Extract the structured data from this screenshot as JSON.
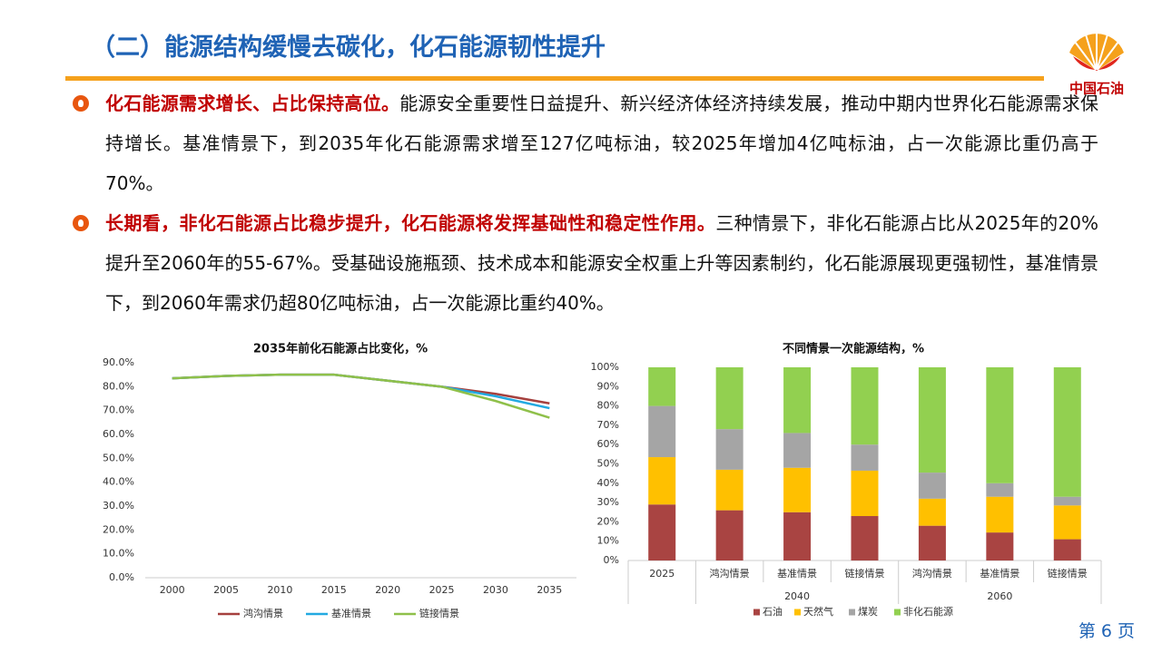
{
  "header": {
    "title": "（二）能源结构缓慢去碳化，化石能源韧性提升",
    "logo_text": "中国石油"
  },
  "bullets": [
    {
      "highlight": "化石能源需求增长、占比保持高位。",
      "text": "能源安全重要性日益提升、新兴经济体经济持续发展，推动中期内世界化石能源需求保持增长。基准情景下，到2035年化石能源需求增至127亿吨标油，较2025年增加4亿吨标油，占一次能源比重仍高于70%。"
    },
    {
      "highlight": "长期看，非化石能源占比稳步提升，化石能源将发挥基础性和稳定性作用。",
      "text": "三种情景下，非化石能源占比从2025年的20%提升至2060年的55-67%。受基础设施瓶颈、技术成本和能源安全权重上升等因素制约，化石能源展现更强韧性，基准情景下，到2060年需求仍超80亿吨标油，占一次能源比重约40%。"
    }
  ],
  "footer": {
    "page": "第 6 页"
  },
  "chart_data": [
    {
      "type": "line",
      "title": "2035年前化石能源占比变化，%",
      "x": [
        2000,
        2005,
        2010,
        2015,
        2020,
        2025,
        2030,
        2035
      ],
      "series": [
        {
          "name": "鸿沟情景",
          "color": "#a5403e",
          "values": [
            83.5,
            84.5,
            85,
            85,
            82.5,
            80,
            77,
            73
          ]
        },
        {
          "name": "基准情景",
          "color": "#22a9e1",
          "values": [
            83.5,
            84.5,
            85,
            85,
            82.5,
            80,
            76,
            71
          ]
        },
        {
          "name": "链接情景",
          "color": "#8fc04a",
          "values": [
            83.5,
            84.5,
            85,
            85,
            82.5,
            80,
            74,
            67
          ]
        }
      ],
      "ylim": [
        0,
        90
      ],
      "yticks": [
        {
          "value": 0,
          "label": "0.0%"
        },
        {
          "value": 10,
          "label": "10.0%"
        },
        {
          "value": 20,
          "label": "20.0%"
        },
        {
          "value": 30,
          "label": "30.0%"
        },
        {
          "value": 40,
          "label": "40.0%"
        },
        {
          "value": 50,
          "label": "50.0%"
        },
        {
          "value": 60,
          "label": "60.0%"
        },
        {
          "value": 70,
          "label": "70.0%"
        },
        {
          "value": 80,
          "label": "80.0%"
        },
        {
          "value": 90,
          "label": "90.0%"
        }
      ],
      "legend": "bottom"
    },
    {
      "type": "stacked_bar",
      "title": "不同情景一次能源结构，%",
      "categories": [
        "2025",
        "鸿沟情景",
        "基准情景",
        "链接情景",
        "鸿沟情景",
        "基准情景",
        "链接情景"
      ],
      "groups": [
        null,
        "2040",
        "2040",
        "2040",
        "2060",
        "2060",
        "2060"
      ],
      "series": [
        {
          "name": "石油",
          "color": "#a94442",
          "values": [
            29,
            26,
            25,
            23,
            18,
            14.5,
            11
          ]
        },
        {
          "name": "天然气",
          "color": "#ffc000",
          "values": [
            24.5,
            21,
            23,
            23.5,
            14,
            18.5,
            17.5
          ]
        },
        {
          "name": "煤炭",
          "color": "#a5a5a5",
          "values": [
            26.5,
            21,
            18,
            13.5,
            13.5,
            7,
            4.5
          ]
        },
        {
          "name": "非化石能源",
          "color": "#92d050",
          "values": [
            20,
            32,
            34,
            40,
            54.5,
            60,
            67
          ]
        }
      ],
      "ylim": [
        0,
        100
      ],
      "yticks": [
        {
          "value": 0,
          "label": "0%"
        },
        {
          "value": 10,
          "label": "10%"
        },
        {
          "value": 20,
          "label": "20%"
        },
        {
          "value": 30,
          "label": "30%"
        },
        {
          "value": 40,
          "label": "40%"
        },
        {
          "value": 50,
          "label": "50%"
        },
        {
          "value": 60,
          "label": "60%"
        },
        {
          "value": 70,
          "label": "70%"
        },
        {
          "value": 80,
          "label": "80%"
        },
        {
          "value": 90,
          "label": "90%"
        },
        {
          "value": 100,
          "label": "100%"
        }
      ],
      "legend": "bottom"
    }
  ]
}
